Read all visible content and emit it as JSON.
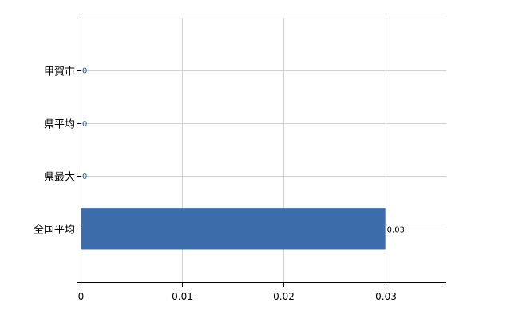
{
  "chart_data": {
    "type": "bar",
    "orientation": "horizontal",
    "categories": [
      "甲賀市",
      "県平均",
      "県最大",
      "全国平均"
    ],
    "values": [
      0,
      0,
      0,
      0.03
    ],
    "data_labels": [
      "0",
      "0",
      "0",
      "0.03"
    ],
    "xlim": [
      0,
      0.036
    ],
    "xticks": [
      0,
      0.01,
      0.02,
      0.03
    ],
    "xtick_labels": [
      "0",
      "0.01",
      "0.02",
      "0.03"
    ],
    "grid": true,
    "colors": {
      "bar": "#3d6caa",
      "grid": "#d0d0d8",
      "axis": "#000000",
      "zero_label": "#1a5fb4"
    }
  }
}
